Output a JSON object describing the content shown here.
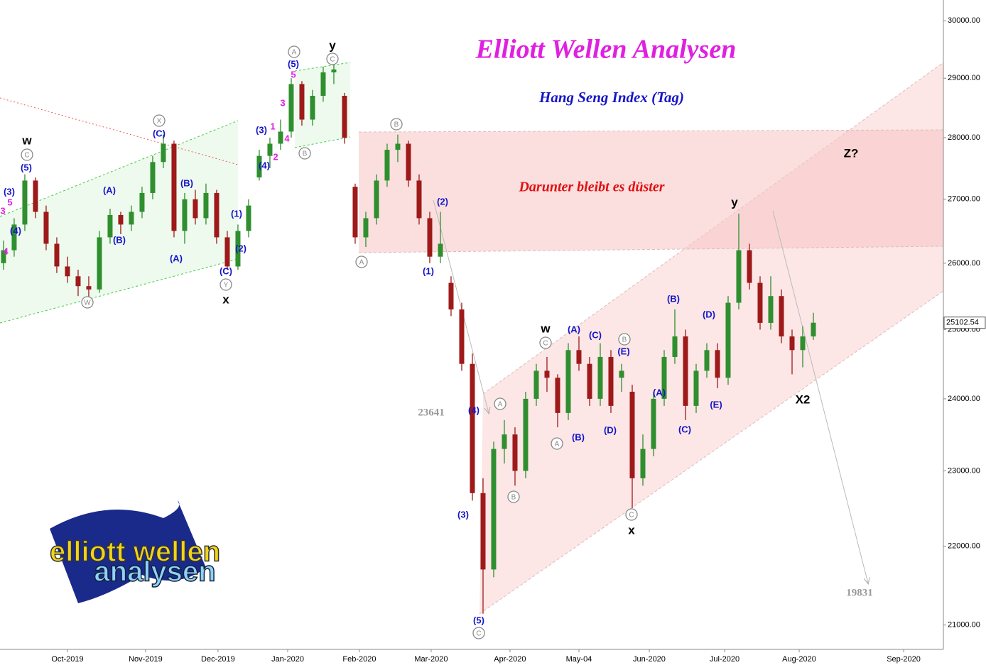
{
  "chart_data": {
    "type": "candlestick",
    "title": "Elliott Wellen Analysen",
    "subtitle": "Hang Seng Index (Tag)",
    "note": "Darunter bleibt es düster",
    "last_price": {
      "value": 25102.54,
      "label": "25102.54"
    },
    "logo": [
      "elliott wellen",
      "analysen"
    ],
    "up_color": "#2f8f2f",
    "down_color": "#9e1a1a",
    "log_scale": true,
    "ylim": [
      20700,
      30370
    ],
    "yticks": [
      {
        "value": 21000,
        "label": "21000.00"
      },
      {
        "value": 22000,
        "label": "22000.00"
      },
      {
        "value": 23000,
        "label": "23000.00"
      },
      {
        "value": 24000,
        "label": "24000.00"
      },
      {
        "value": 25000,
        "label": "25000.00"
      },
      {
        "value": 26000,
        "label": "26000.00"
      },
      {
        "value": 27000,
        "label": "27000.00"
      },
      {
        "value": 28000,
        "label": "28000.00"
      },
      {
        "value": 29000,
        "label": "29000.00"
      },
      {
        "value": 30000,
        "label": "30000.00"
      }
    ],
    "xlim": [
      -0.33,
      88.2
    ],
    "xticks": [
      {
        "value": 6,
        "label": "Oct-2019"
      },
      {
        "value": 13.33,
        "label": "Nov-2019"
      },
      {
        "value": 20.13,
        "label": "Dec-2019"
      },
      {
        "value": 26.67,
        "label": "Jan-2020"
      },
      {
        "value": 33.4,
        "label": "Feb-2020"
      },
      {
        "value": 40.13,
        "label": "Mar-2020"
      },
      {
        "value": 47.53,
        "label": "Apr-2020"
      },
      {
        "value": 54,
        "label": "May-04"
      },
      {
        "value": 60.6,
        "label": "Jun-2020"
      },
      {
        "value": 67.67,
        "label": "Jul-2020"
      },
      {
        "value": 74.67,
        "label": "Aug-2020"
      },
      {
        "value": 84.47,
        "label": "Sep-2020"
      }
    ],
    "candles": [
      [
        26000,
        26350,
        25900,
        26200
      ],
      [
        26200,
        26700,
        26100,
        26600
      ],
      [
        26600,
        27400,
        26500,
        27300
      ],
      [
        27300,
        27350,
        26700,
        26800
      ],
      [
        26800,
        26900,
        26200,
        26300
      ],
      [
        26300,
        26400,
        25850,
        25950
      ],
      [
        25950,
        26100,
        25700,
        25800
      ],
      [
        25800,
        25900,
        25500,
        25650
      ],
      [
        25650,
        25800,
        25450,
        25600
      ],
      [
        25600,
        26500,
        25550,
        26400
      ],
      [
        26400,
        26850,
        26300,
        26750
      ],
      [
        26750,
        26800,
        26450,
        26600
      ],
      [
        26600,
        26900,
        26500,
        26800
      ],
      [
        26800,
        27200,
        26700,
        27100
      ],
      [
        27100,
        27700,
        27000,
        27600
      ],
      [
        27600,
        28050,
        27500,
        27900
      ],
      [
        27900,
        27950,
        26400,
        26500
      ],
      [
        26500,
        27100,
        26300,
        27000
      ],
      [
        27000,
        27150,
        26600,
        26700
      ],
      [
        26700,
        27250,
        26600,
        27100
      ],
      [
        27100,
        27150,
        26300,
        26400
      ],
      [
        26400,
        26500,
        25900,
        25950
      ],
      [
        25950,
        26600,
        25900,
        26500
      ],
      [
        26500,
        27000,
        26400,
        26900
      ],
      [
        27350,
        27800,
        27300,
        27700
      ],
      [
        27700,
        28000,
        27500,
        27900
      ],
      [
        27900,
        28300,
        27800,
        28100
      ],
      [
        28100,
        29000,
        28000,
        28900
      ],
      [
        28900,
        28950,
        28200,
        28300
      ],
      [
        28300,
        28800,
        28200,
        28700
      ],
      [
        28700,
        29200,
        28600,
        29100
      ],
      [
        29100,
        29250,
        28900,
        29150
      ],
      [
        28700,
        28750,
        27900,
        28000
      ],
      [
        27200,
        27250,
        26300,
        26400
      ],
      [
        26400,
        26800,
        26250,
        26700
      ],
      [
        26700,
        27400,
        26600,
        27300
      ],
      [
        27300,
        27900,
        27200,
        27800
      ],
      [
        27800,
        28050,
        27600,
        27900
      ],
      [
        27900,
        27950,
        27200,
        27300
      ],
      [
        27300,
        27400,
        26600,
        26700
      ],
      [
        26700,
        26800,
        26000,
        26100
      ],
      [
        26100,
        26800,
        26000,
        26300
      ],
      [
        25700,
        25800,
        25200,
        25300
      ],
      [
        25300,
        25400,
        24400,
        24500
      ],
      [
        24500,
        24650,
        22600,
        22700
      ],
      [
        22700,
        22900,
        21140,
        21700
      ],
      [
        21700,
        23400,
        21600,
        23300
      ],
      [
        23300,
        23700,
        23100,
        23500
      ],
      [
        23500,
        23600,
        22800,
        23000
      ],
      [
        23000,
        24100,
        22900,
        24000
      ],
      [
        24000,
        24500,
        23900,
        24400
      ],
      [
        24400,
        24600,
        24100,
        24300
      ],
      [
        24300,
        24350,
        23600,
        23800
      ],
      [
        23800,
        24800,
        23700,
        24700
      ],
      [
        24700,
        24900,
        24400,
        24500
      ],
      [
        24500,
        24600,
        23900,
        24000
      ],
      [
        24000,
        24800,
        23900,
        24600
      ],
      [
        24600,
        24700,
        23800,
        23900
      ],
      [
        24300,
        24500,
        24100,
        24400
      ],
      [
        24100,
        24200,
        22500,
        22900
      ],
      [
        22900,
        23500,
        22800,
        23300
      ],
      [
        23300,
        24100,
        23200,
        24000
      ],
      [
        24000,
        24700,
        23900,
        24600
      ],
      [
        24600,
        25300,
        24500,
        24900
      ],
      [
        24900,
        25000,
        23700,
        23900
      ],
      [
        23900,
        24500,
        23800,
        24400
      ],
      [
        24400,
        24800,
        24300,
        24700
      ],
      [
        24700,
        24800,
        24150,
        24300
      ],
      [
        24300,
        25500,
        24200,
        25400
      ],
      [
        25400,
        26770,
        25300,
        26200
      ],
      [
        26200,
        26300,
        25600,
        25700
      ],
      [
        25700,
        25800,
        25000,
        25100
      ],
      [
        25100,
        25800,
        25000,
        25500
      ],
      [
        25500,
        25600,
        24800,
        24900
      ],
      [
        24900,
        25000,
        24350,
        24700
      ],
      [
        24700,
        25050,
        24450,
        24900
      ],
      [
        24900,
        25250,
        24850,
        25102.54
      ]
    ],
    "annotations": [
      "w",
      "C",
      "(5)",
      "(3)",
      "5",
      "3",
      "(4)",
      "4",
      "W",
      "(A)",
      "(B)",
      "X",
      "(C)",
      "(B)",
      "(A)",
      "(1)",
      "(2)",
      "(C)",
      "Y",
      "x",
      "(4)",
      "2",
      "(3)",
      "1",
      "3",
      "4",
      "(5)",
      "5",
      "A",
      "B",
      "y",
      "C",
      "B",
      "A",
      "(2)",
      "(1)",
      "(4)",
      "A",
      "B",
      "(3)",
      "(5)",
      "C",
      "w",
      "C",
      "(A)",
      "(C)",
      "B",
      "(E)",
      "A",
      "(B)",
      "(D)",
      "C",
      "x",
      "(A)",
      "(B)",
      "(C)",
      "(D)",
      "(E)",
      "y",
      "X2",
      "Z?",
      "23641",
      "19831"
    ]
  }
}
